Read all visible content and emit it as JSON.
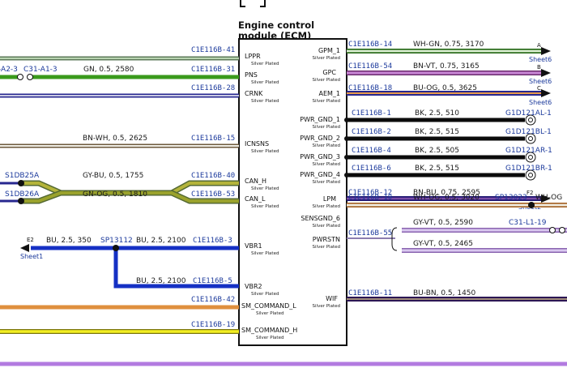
{
  "ecm": {
    "title_line1": "Engine control",
    "title_line2": "module (ECM)",
    "plating": "Silver Plated",
    "left_pins": [
      "LPPR",
      "PNS",
      "CRNK",
      "ICNSNS",
      "CAN_H",
      "CAN_L",
      "VBR1",
      "VBR2",
      "SM_COMMAND_L",
      "SM_COMMAND_H"
    ],
    "right_pins": [
      "GPM_1",
      "GPC",
      "AEM_1",
      "PWR_GND_1",
      "PWR_GND_2",
      "PWR_GND_3",
      "PWR_GND_4",
      "LPM",
      "SENSGND_6",
      "PWRSTN",
      "WIF"
    ]
  },
  "left_wires": {
    "pin_41": "C1E116B-41",
    "pin_31": "C1E116B-31",
    "pin_28": "C1E116B-28",
    "pin_15": "C1E116B-15",
    "pin_40": "C1E116B-40",
    "pin_53": "C1E116B-53",
    "pin_3": "C1E116B-3",
    "pin_5": "C1E116B-5",
    "pin_42": "C1E116B-42",
    "pin_19": "C1E116B-19",
    "pns_spec": "GN, 0.5, 2580",
    "pns_far_conn": "-A2-3",
    "pns_near_conn": "C31-A1-3",
    "icnsns_spec": "BN-WH, 0.5, 2625",
    "canh_spec": "GY-BU, 0.5, 1755",
    "canl_spec": "GN-OG, 0.5, 1810",
    "canh_splice": "S1DB25A",
    "canl_splice": "S1DB26A",
    "vbr1_spec_left": "BU, 2.5, 350",
    "vbr1_spec_right": "BU, 2.5, 2100",
    "vbr2_spec": "BU, 2.5, 2100",
    "vbr_splice": "SP13112",
    "vbr_endpoint": "E2",
    "vbr_sheet": "Sheet1"
  },
  "right_wires": [
    {
      "pin": "C1E116B-14",
      "spec": "WH-GN, 0.75, 3170",
      "end": "A",
      "sheet": "Sheet6"
    },
    {
      "pin": "C1E116B-54",
      "spec": "BN-VT, 0.75, 3165",
      "end": "B",
      "sheet": "Sheet6"
    },
    {
      "pin": "C1E116B-18",
      "spec": "BU-OG, 0.5, 3625",
      "end": "C",
      "sheet": "Sheet6"
    },
    {
      "pin": "C1E116B-1",
      "spec": "BK, 2.5, 510",
      "dest": "G1D121AL-1"
    },
    {
      "pin": "C1E116B-2",
      "spec": "BK, 2.5, 515",
      "dest": "G1D121BL-1"
    },
    {
      "pin": "C1E116B-4",
      "spec": "BK, 2.5, 505",
      "dest": "G1D121AR-1"
    },
    {
      "pin": "C1E116B-6",
      "spec": "BK, 2.5, 515",
      "dest": "G1D121BR-1"
    },
    {
      "pin": "C1E116B-12",
      "spec": "BN-BU, 0.75, 2595",
      "end": "F2",
      "sheet": "Sheet2"
    },
    {
      "pin": "C1E116B-10",
      "spec": "WH-OG, 0.5, 3020",
      "splice": "SP13023",
      "spec2": "WH-OG"
    },
    {
      "pin": "C1E116B-55",
      "spec": "GY-VT, 0.5, 2590",
      "spec_b": "GY-VT, 0.5, 2465",
      "dest": "C31-L1-19"
    },
    {
      "pin": "C1E116B-11",
      "spec": "BU-BN, 0.5, 1450"
    }
  ],
  "colors": {
    "green": "#3a9a1c",
    "olive": "#9c9a2a",
    "navy": "#27278f",
    "blue": "#1530c4",
    "black": "#0b0b0b",
    "orange": "#df8f3e",
    "yellow": "#f2ee22",
    "violet": "#b27be0",
    "dark_violet": "#2c1654",
    "tan": "#c8b48a"
  }
}
